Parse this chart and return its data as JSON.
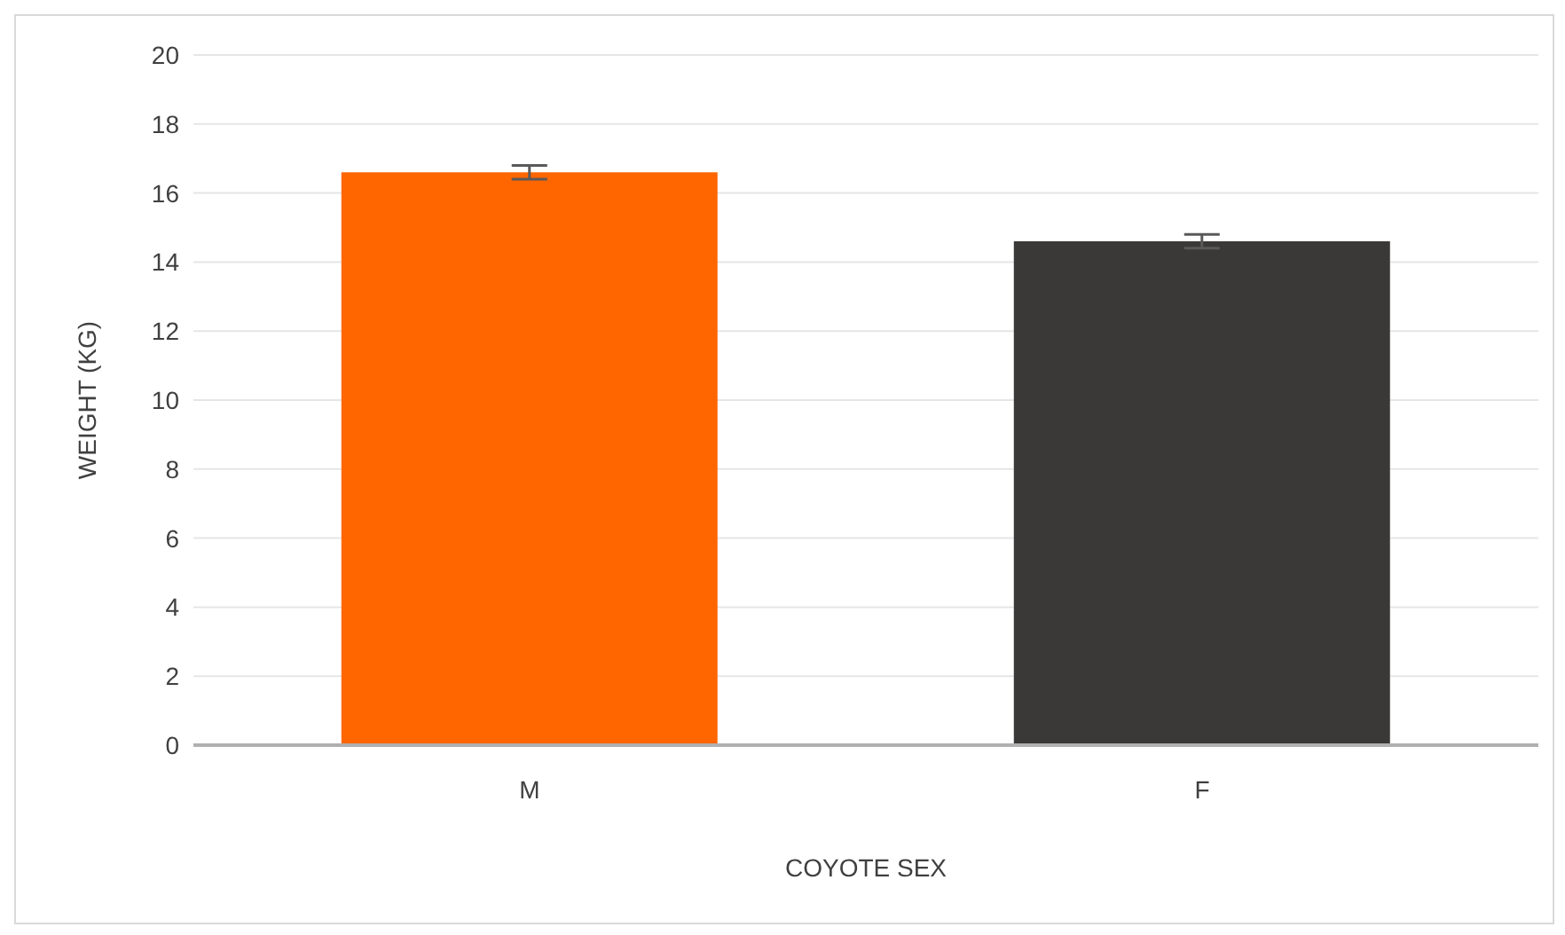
{
  "chart_data": {
    "type": "bar",
    "xlabel": "COYOTE SEX",
    "ylabel": "WEIGHT (KG)",
    "categories": [
      "M",
      "F"
    ],
    "values": [
      16.6,
      14.6
    ],
    "colors": [
      "#ff6600",
      "#3a3937"
    ],
    "errors": [
      0.2,
      0.2
    ],
    "ylim": [
      0,
      20
    ],
    "yticks": [
      0,
      2,
      4,
      6,
      8,
      10,
      12,
      14,
      16,
      18,
      20
    ],
    "grid": "y"
  }
}
